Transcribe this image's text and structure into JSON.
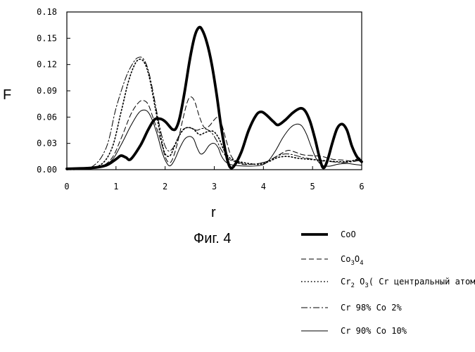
{
  "chart_data": {
    "type": "line",
    "title": "",
    "caption": "Фиг. 4",
    "xlabel": "r",
    "ylabel": "F",
    "xlim": [
      0,
      6
    ],
    "ylim": [
      0,
      0.18
    ],
    "x_ticks": [
      "0",
      "1",
      "2",
      "3",
      "4",
      "5",
      "6"
    ],
    "y_ticks": [
      "0.00",
      "0.03",
      "0.06",
      "0.09",
      "0.12",
      "0.15",
      "0.18"
    ],
    "grid": false,
    "legend_position": "bottom-right",
    "legend": [
      {
        "base": "CoO",
        "sub": [],
        "style": "thick-solid"
      },
      {
        "base": "Co",
        "sub": [
          {
            "t": "3",
            "s": true
          },
          {
            "t": "O",
            "s": false
          },
          {
            "t": "4",
            "s": true
          }
        ],
        "text": "Co3O4",
        "style": "dashed"
      },
      {
        "base": "Cr",
        "sub": [
          {
            "t": "2",
            "s": true
          },
          {
            "t": " O",
            "s": false
          },
          {
            "t": "3",
            "s": true
          },
          {
            "t": "( Cr центральный атом)",
            "s": false
          }
        ],
        "text": "Cr2O3( Cr центральный атом)",
        "style": "dotted"
      },
      {
        "base": "Cr  98% Co 2%",
        "sub": [],
        "style": "dash-dot"
      },
      {
        "base": "Cr  90% Co 10%",
        "sub": [],
        "style": "thin-solid"
      }
    ],
    "series": [
      {
        "style": "thick-solid",
        "points": [
          [
            0,
            0.001
          ],
          [
            0.5,
            0.002
          ],
          [
            0.8,
            0.005
          ],
          [
            1.0,
            0.012
          ],
          [
            1.1,
            0.016
          ],
          [
            1.2,
            0.014
          ],
          [
            1.3,
            0.012
          ],
          [
            1.5,
            0.028
          ],
          [
            1.65,
            0.045
          ],
          [
            1.78,
            0.057
          ],
          [
            1.9,
            0.058
          ],
          [
            2.0,
            0.055
          ],
          [
            2.08,
            0.05
          ],
          [
            2.15,
            0.046
          ],
          [
            2.22,
            0.047
          ],
          [
            2.3,
            0.06
          ],
          [
            2.4,
            0.09
          ],
          [
            2.5,
            0.125
          ],
          [
            2.6,
            0.152
          ],
          [
            2.68,
            0.162
          ],
          [
            2.75,
            0.16
          ],
          [
            2.85,
            0.145
          ],
          [
            2.95,
            0.12
          ],
          [
            3.05,
            0.085
          ],
          [
            3.15,
            0.045
          ],
          [
            3.25,
            0.015
          ],
          [
            3.32,
            0.003
          ],
          [
            3.4,
            0.004
          ],
          [
            3.55,
            0.02
          ],
          [
            3.7,
            0.045
          ],
          [
            3.85,
            0.062
          ],
          [
            3.95,
            0.066
          ],
          [
            4.05,
            0.063
          ],
          [
            4.2,
            0.055
          ],
          [
            4.3,
            0.051
          ],
          [
            4.45,
            0.057
          ],
          [
            4.6,
            0.065
          ],
          [
            4.75,
            0.07
          ],
          [
            4.85,
            0.067
          ],
          [
            4.95,
            0.055
          ],
          [
            5.05,
            0.035
          ],
          [
            5.15,
            0.012
          ],
          [
            5.22,
            0.002
          ],
          [
            5.3,
            0.01
          ],
          [
            5.4,
            0.03
          ],
          [
            5.5,
            0.047
          ],
          [
            5.6,
            0.052
          ],
          [
            5.7,
            0.045
          ],
          [
            5.8,
            0.027
          ],
          [
            5.9,
            0.015
          ],
          [
            6.0,
            0.009
          ]
        ]
      },
      {
        "style": "dashed",
        "points": [
          [
            0,
            0
          ],
          [
            0.6,
            0.002
          ],
          [
            0.9,
            0.012
          ],
          [
            1.1,
            0.035
          ],
          [
            1.3,
            0.063
          ],
          [
            1.45,
            0.076
          ],
          [
            1.55,
            0.079
          ],
          [
            1.65,
            0.075
          ],
          [
            1.75,
            0.06
          ],
          [
            1.9,
            0.035
          ],
          [
            2.0,
            0.015
          ],
          [
            2.08,
            0.008
          ],
          [
            2.15,
            0.012
          ],
          [
            2.25,
            0.03
          ],
          [
            2.35,
            0.055
          ],
          [
            2.45,
            0.077
          ],
          [
            2.52,
            0.083
          ],
          [
            2.6,
            0.078
          ],
          [
            2.7,
            0.06
          ],
          [
            2.8,
            0.048
          ],
          [
            2.9,
            0.05
          ],
          [
            3.0,
            0.057
          ],
          [
            3.08,
            0.06
          ],
          [
            3.15,
            0.052
          ],
          [
            3.25,
            0.032
          ],
          [
            3.35,
            0.015
          ],
          [
            3.5,
            0.007
          ],
          [
            3.7,
            0.006
          ],
          [
            4.0,
            0.008
          ],
          [
            4.2,
            0.013
          ],
          [
            4.35,
            0.018
          ],
          [
            4.5,
            0.022
          ],
          [
            4.65,
            0.02
          ],
          [
            4.8,
            0.017
          ],
          [
            5.0,
            0.016
          ],
          [
            5.2,
            0.015
          ],
          [
            5.4,
            0.012
          ],
          [
            5.6,
            0.011
          ],
          [
            5.8,
            0.01
          ],
          [
            6.0,
            0.012
          ]
        ]
      },
      {
        "style": "dotted",
        "points": [
          [
            0,
            0
          ],
          [
            0.6,
            0.003
          ],
          [
            0.9,
            0.022
          ],
          [
            1.1,
            0.065
          ],
          [
            1.25,
            0.1
          ],
          [
            1.38,
            0.12
          ],
          [
            1.48,
            0.126
          ],
          [
            1.58,
            0.122
          ],
          [
            1.68,
            0.105
          ],
          [
            1.8,
            0.07
          ],
          [
            1.92,
            0.035
          ],
          [
            2.0,
            0.018
          ],
          [
            2.1,
            0.016
          ],
          [
            2.2,
            0.028
          ],
          [
            2.3,
            0.04
          ],
          [
            2.4,
            0.047
          ],
          [
            2.5,
            0.048
          ],
          [
            2.58,
            0.046
          ],
          [
            2.7,
            0.04
          ],
          [
            2.8,
            0.042
          ],
          [
            2.9,
            0.044
          ],
          [
            3.0,
            0.043
          ],
          [
            3.1,
            0.035
          ],
          [
            3.2,
            0.022
          ],
          [
            3.35,
            0.012
          ],
          [
            3.6,
            0.008
          ],
          [
            3.9,
            0.006
          ],
          [
            4.1,
            0.009
          ],
          [
            4.3,
            0.014
          ],
          [
            4.5,
            0.015
          ],
          [
            4.7,
            0.013
          ],
          [
            4.9,
            0.012
          ],
          [
            5.1,
            0.011
          ],
          [
            5.3,
            0.01
          ],
          [
            5.6,
            0.009
          ],
          [
            5.8,
            0.01
          ],
          [
            6.0,
            0.014
          ]
        ]
      },
      {
        "style": "dash-dot",
        "points": [
          [
            0,
            0
          ],
          [
            0.5,
            0.003
          ],
          [
            0.8,
            0.025
          ],
          [
            1.0,
            0.07
          ],
          [
            1.2,
            0.105
          ],
          [
            1.35,
            0.122
          ],
          [
            1.45,
            0.128
          ],
          [
            1.55,
            0.127
          ],
          [
            1.65,
            0.115
          ],
          [
            1.75,
            0.09
          ],
          [
            1.85,
            0.06
          ],
          [
            1.95,
            0.035
          ],
          [
            2.05,
            0.022
          ],
          [
            2.15,
            0.024
          ],
          [
            2.25,
            0.035
          ],
          [
            2.35,
            0.045
          ],
          [
            2.45,
            0.048
          ],
          [
            2.55,
            0.047
          ],
          [
            2.65,
            0.045
          ],
          [
            2.75,
            0.047
          ],
          [
            2.85,
            0.046
          ],
          [
            2.95,
            0.042
          ],
          [
            3.05,
            0.033
          ],
          [
            3.15,
            0.022
          ],
          [
            3.3,
            0.012
          ],
          [
            3.5,
            0.008
          ],
          [
            3.7,
            0.006
          ],
          [
            3.9,
            0.007
          ],
          [
            4.1,
            0.01
          ],
          [
            4.3,
            0.016
          ],
          [
            4.45,
            0.018
          ],
          [
            4.6,
            0.017
          ],
          [
            4.8,
            0.014
          ],
          [
            5.0,
            0.012
          ],
          [
            5.2,
            0.01
          ],
          [
            5.4,
            0.009
          ],
          [
            5.6,
            0.008
          ],
          [
            5.8,
            0.009
          ],
          [
            6.0,
            0.011
          ]
        ]
      },
      {
        "style": "thin-solid",
        "points": [
          [
            0,
            0
          ],
          [
            0.6,
            0.002
          ],
          [
            0.9,
            0.01
          ],
          [
            1.1,
            0.028
          ],
          [
            1.3,
            0.05
          ],
          [
            1.45,
            0.064
          ],
          [
            1.55,
            0.068
          ],
          [
            1.65,
            0.066
          ],
          [
            1.75,
            0.055
          ],
          [
            1.85,
            0.038
          ],
          [
            1.95,
            0.018
          ],
          [
            2.05,
            0.006
          ],
          [
            2.12,
            0.005
          ],
          [
            2.2,
            0.012
          ],
          [
            2.3,
            0.025
          ],
          [
            2.4,
            0.035
          ],
          [
            2.5,
            0.038
          ],
          [
            2.58,
            0.035
          ],
          [
            2.65,
            0.025
          ],
          [
            2.72,
            0.018
          ],
          [
            2.8,
            0.02
          ],
          [
            2.9,
            0.028
          ],
          [
            3.0,
            0.03
          ],
          [
            3.08,
            0.025
          ],
          [
            3.15,
            0.015
          ],
          [
            3.25,
            0.008
          ],
          [
            3.4,
            0.005
          ],
          [
            3.7,
            0.004
          ],
          [
            3.95,
            0.005
          ],
          [
            4.1,
            0.01
          ],
          [
            4.25,
            0.022
          ],
          [
            4.4,
            0.037
          ],
          [
            4.55,
            0.048
          ],
          [
            4.68,
            0.052
          ],
          [
            4.78,
            0.05
          ],
          [
            4.88,
            0.04
          ],
          [
            4.98,
            0.025
          ],
          [
            5.08,
            0.012
          ],
          [
            5.2,
            0.005
          ],
          [
            5.35,
            0.004
          ],
          [
            5.5,
            0.006
          ],
          [
            5.7,
            0.007
          ],
          [
            5.85,
            0.006
          ],
          [
            6.0,
            0.005
          ]
        ]
      }
    ]
  }
}
